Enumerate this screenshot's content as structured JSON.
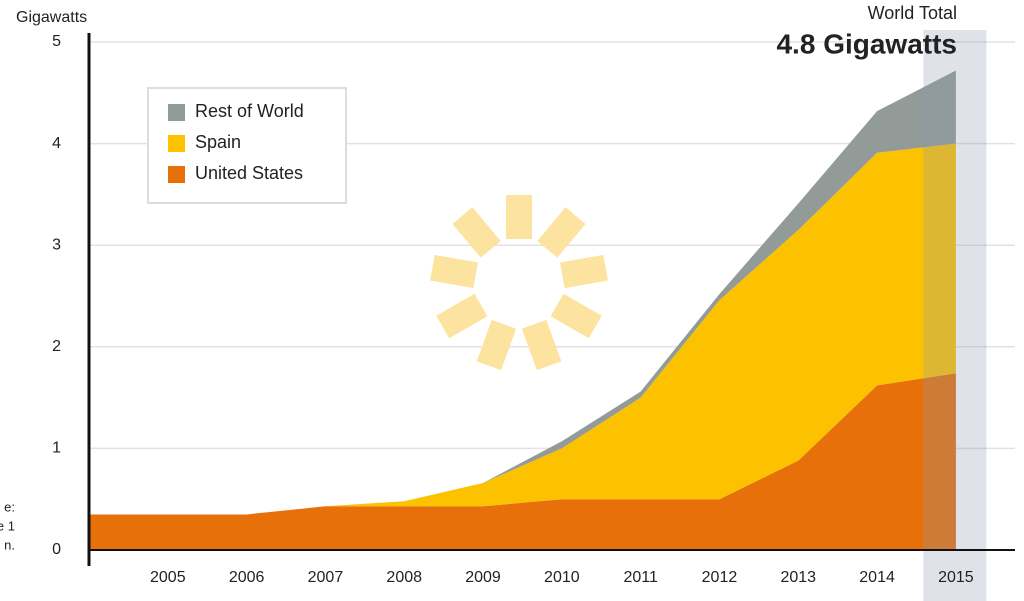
{
  "chart_data": {
    "type": "stacked_area",
    "y_axis_label": "Gigawatts",
    "annotation_label": "World Total",
    "annotation_value": "4.8 Gigawatts",
    "side_note": [
      "e:",
      "e 1",
      "n."
    ],
    "x": [
      2004,
      2005,
      2006,
      2007,
      2008,
      2009,
      2010,
      2011,
      2012,
      2013,
      2014,
      2015
    ],
    "xlim": [
      2004,
      2015.75
    ],
    "xticks": [
      2005,
      2006,
      2007,
      2008,
      2009,
      2010,
      2011,
      2012,
      2013,
      2014,
      2015
    ],
    "ylim": [
      0,
      5
    ],
    "yticks": [
      0,
      1,
      2,
      3,
      4,
      5
    ],
    "grid": true,
    "highlight_x": 2015,
    "series": [
      {
        "name": "United States",
        "color": "#e8700a",
        "values": [
          0.35,
          0.35,
          0.35,
          0.43,
          0.43,
          0.43,
          0.5,
          0.5,
          0.5,
          0.88,
          1.62,
          1.74
        ]
      },
      {
        "name": "Spain",
        "color": "#fcc200",
        "values": [
          0,
          0,
          0,
          0,
          0.05,
          0.23,
          0.5,
          1.0,
          1.96,
          2.27,
          2.29,
          2.26
        ]
      },
      {
        "name": "Rest of World",
        "color": "#939b98",
        "values": [
          0,
          0,
          0,
          0,
          0,
          0,
          0.07,
          0.06,
          0.06,
          0.26,
          0.41,
          0.72
        ]
      }
    ]
  }
}
